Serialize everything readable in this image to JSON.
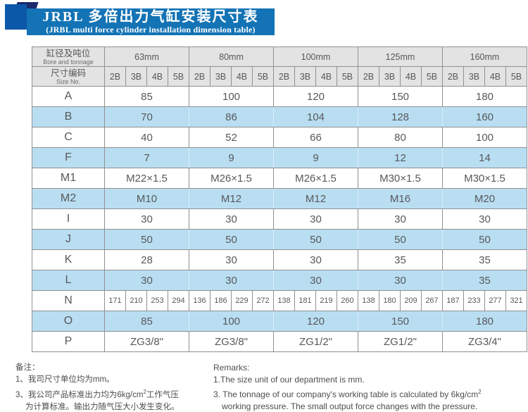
{
  "banner": {
    "title_cn": "JRBL 多倍出力气缸安装尺寸表",
    "title_en": "(JRBL multi force cylinder installation dimension table)",
    "banner_color": "#1373b5",
    "square_color": "#0b57a8",
    "ribbon_color": "#1b2a6a"
  },
  "table": {
    "header": {
      "col1_line1": "缸径及吨位",
      "col1_line2": "Bore and tonnage",
      "col2_line1": "尺寸编码",
      "col2_line2": "Size No.",
      "groups": [
        "63mm",
        "80mm",
        "100mm",
        "125mm",
        "160mm"
      ],
      "sizes": [
        "2B",
        "3B",
        "4B",
        "5B"
      ]
    },
    "rows": [
      {
        "label": "A",
        "type": "merged",
        "shade": false,
        "values": [
          "85",
          "100",
          "120",
          "150",
          "180"
        ]
      },
      {
        "label": "B",
        "type": "merged",
        "shade": true,
        "values": [
          "70",
          "86",
          "104",
          "128",
          "160"
        ]
      },
      {
        "label": "C",
        "type": "merged",
        "shade": false,
        "values": [
          "40",
          "52",
          "66",
          "80",
          "100"
        ]
      },
      {
        "label": "F",
        "type": "merged",
        "shade": true,
        "values": [
          "7",
          "9",
          "9",
          "12",
          "14"
        ]
      },
      {
        "label": "M1",
        "type": "merged",
        "shade": false,
        "values": [
          "M22×1.5",
          "M26×1.5",
          "M26×1.5",
          "M30×1.5",
          "M30×1.5"
        ]
      },
      {
        "label": "M2",
        "type": "merged",
        "shade": true,
        "values": [
          "M10",
          "M12",
          "M12",
          "M16",
          "M20"
        ]
      },
      {
        "label": "I",
        "type": "merged",
        "shade": false,
        "values": [
          "30",
          "30",
          "30",
          "30",
          "30"
        ]
      },
      {
        "label": "J",
        "type": "merged",
        "shade": true,
        "values": [
          "50",
          "50",
          "50",
          "50",
          "50"
        ]
      },
      {
        "label": "K",
        "type": "merged",
        "shade": false,
        "values": [
          "28",
          "30",
          "30",
          "35",
          "35"
        ]
      },
      {
        "label": "L",
        "type": "merged",
        "shade": true,
        "values": [
          "30",
          "30",
          "30",
          "30",
          "35"
        ]
      },
      {
        "label": "N",
        "type": "per-column",
        "shade": false,
        "values": [
          "171",
          "210",
          "253",
          "294",
          "136",
          "186",
          "229",
          "272",
          "138",
          "181",
          "219",
          "260",
          "138",
          "180",
          "209",
          "267",
          "187",
          "233",
          "277",
          "321"
        ]
      },
      {
        "label": "O",
        "type": "merged",
        "shade": true,
        "values": [
          "85",
          "100",
          "120",
          "150",
          "180"
        ]
      },
      {
        "label": "P",
        "type": "merged",
        "shade": false,
        "values": [
          "ZG3/8\"",
          "ZG3/8\"",
          "ZG1/2\"",
          "ZG1/2\"",
          "ZG3/4\""
        ]
      }
    ],
    "colors": {
      "header_bg": "#e3e3e3",
      "shade_bg": "#b9def2",
      "border": "#8f9091",
      "text": "#57585a"
    }
  },
  "notes": {
    "cn": {
      "heading": "备注：",
      "line1": "1、我司尺寸单位均为mm。",
      "line2_pre": "3、我公司产品标准出力均为6kg/cm",
      "line2_sup": "2",
      "line2_post": "工作气压",
      "line3": "为计算标准。输出力随气压大小发生变化。"
    },
    "en": {
      "heading": "Remarks:",
      "line1": "1.The size unit of our department is mm.",
      "line2_pre": "3. The tonnage of our company's working table is calculated by 6kg/cm",
      "line2_sup": "2",
      "line3": "working pressure. The small output force changes with the pressure."
    }
  }
}
